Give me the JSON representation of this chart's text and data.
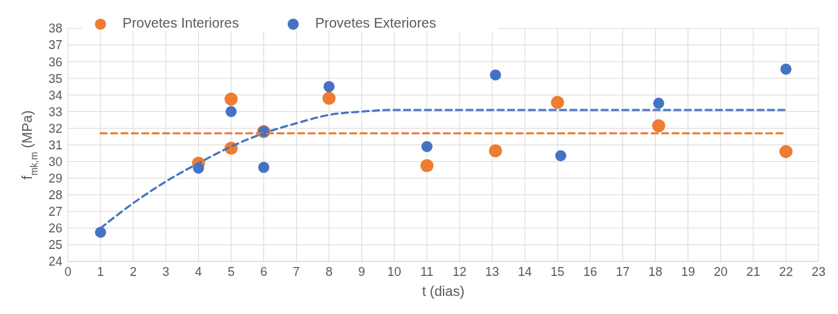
{
  "chart_data": {
    "type": "scatter",
    "xlabel": "t (dias)",
    "ylabel": "f$_{mk,m}$ (MPa)",
    "xlim": [
      0,
      23
    ],
    "xticks": [
      0,
      1,
      2,
      3,
      4,
      5,
      6,
      7,
      8,
      9,
      10,
      11,
      12,
      13,
      14,
      15,
      16,
      17,
      18,
      19,
      20,
      21,
      22,
      23
    ],
    "ylim": [
      24,
      38
    ],
    "yticks": [
      24,
      25,
      26,
      27,
      28,
      29,
      30,
      31,
      32,
      33,
      34,
      35,
      36,
      37,
      38
    ],
    "grid": true,
    "legend": "top",
    "line_style": "dashed",
    "series": [
      {
        "name": "Provetes Interiores",
        "color": "#ed7d31",
        "marker": "circle",
        "x": [
          4,
          5,
          5,
          6,
          8,
          11,
          13.1,
          15,
          18.1,
          22
        ],
        "values": [
          29.9,
          33.75,
          30.8,
          31.8,
          33.8,
          29.75,
          30.65,
          33.55,
          32.15,
          30.6
        ]
      },
      {
        "name": "Provetes Exteriores",
        "color": "#4472c4",
        "marker": "circle",
        "x": [
          1,
          4,
          5,
          6,
          6,
          8,
          11,
          13.1,
          15.1,
          18.1,
          22
        ],
        "values": [
          25.75,
          29.6,
          33.0,
          31.8,
          29.65,
          34.5,
          30.9,
          35.2,
          30.35,
          33.5,
          35.55
        ]
      },
      {
        "type": "line",
        "color": "#ed7d31",
        "marker": "none",
        "x": [
          1,
          22
        ],
        "values": [
          31.7,
          31.7
        ]
      },
      {
        "type": "line",
        "color": "#4472c4",
        "marker": "none",
        "x": [
          1,
          2,
          3,
          4,
          5,
          6,
          7,
          8,
          9,
          10,
          22
        ],
        "values": [
          26.0,
          27.5,
          28.8,
          29.9,
          30.9,
          31.7,
          32.3,
          32.8,
          33.0,
          33.1,
          33.1
        ]
      }
    ]
  }
}
